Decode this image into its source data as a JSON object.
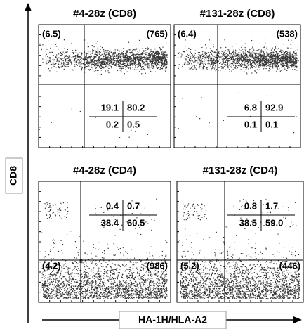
{
  "y_axis_label": "CD8",
  "x_axis_label": "HA-1H/HLA-A2",
  "panels": [
    {
      "title": "#4-28z (CD8)",
      "left_label": "(6.5)",
      "right_label": "(765)",
      "quadrants": [
        [
          "19.1",
          "80.2"
        ],
        [
          "0.2",
          "0.5"
        ]
      ]
    },
    {
      "title": "#131-28z (CD8)",
      "left_label": "(6.4)",
      "right_label": "(538)",
      "quadrants": [
        [
          "6.8",
          "92.9"
        ],
        [
          "0.1",
          "0.1"
        ]
      ]
    },
    {
      "title": "#4-28z (CD4)",
      "left_label": "(4.2)",
      "right_label": "(986)",
      "quadrants": [
        [
          "0.4",
          "0.7"
        ],
        [
          "38.4",
          "60.5"
        ]
      ]
    },
    {
      "title": "#131-28z (CD4)",
      "left_label": "(5.2)",
      "right_label": "(446)",
      "quadrants": [
        [
          "0.8",
          "1.7"
        ],
        [
          "38.5",
          "59.0"
        ]
      ]
    }
  ]
}
